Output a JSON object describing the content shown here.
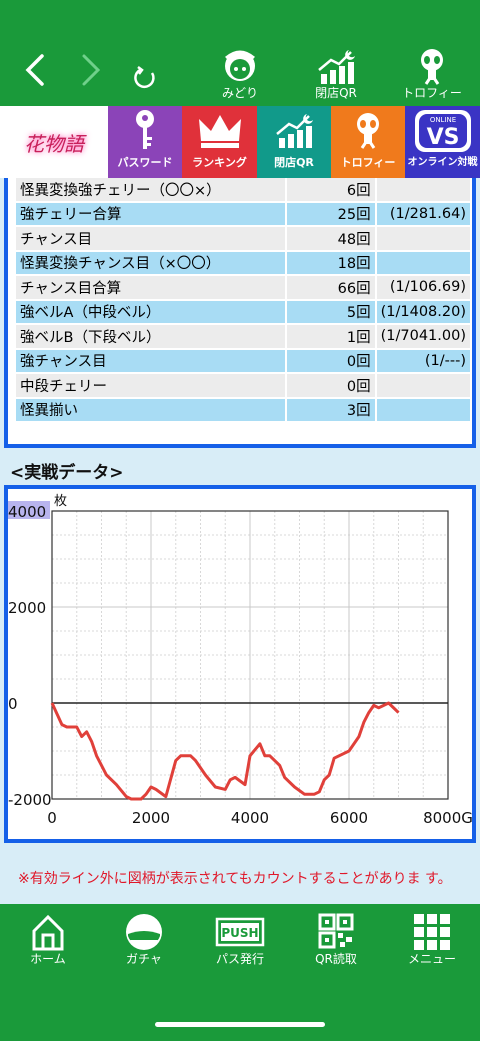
{
  "topbar": {
    "back_icon": "chevron-left-icon",
    "forward_icon": "chevron-right-icon",
    "reload_icon": "reload-icon",
    "items": [
      {
        "label": "みどり",
        "icon": "character-icon"
      },
      {
        "label": "閉店QR",
        "icon": "chart-moon-icon"
      },
      {
        "label": "トロフィー",
        "icon": "alien-icon"
      }
    ]
  },
  "menubar": {
    "logo_text": "花物語",
    "items": [
      {
        "label": "パスワード",
        "color": "#8b44b8",
        "icon": "key-icon"
      },
      {
        "label": "ランキング",
        "color": "#e0313a",
        "icon": "crown-icon"
      },
      {
        "label": "閉店QR",
        "color": "#119a8a",
        "icon": "chart-moon-icon"
      },
      {
        "label": "トロフィー",
        "color": "#f07a1c",
        "icon": "alien-icon"
      },
      {
        "label": "オンライン対戦",
        "color": "#3a34c4",
        "icon": "vs-icon",
        "badge": "VS",
        "sub_badge": "ONLINE"
      }
    ]
  },
  "table": {
    "rows": [
      {
        "name": "怪異変換強チェリー（〇〇×）",
        "count": "6回",
        "prob": ""
      },
      {
        "name": "強チェリー合算",
        "count": "25回",
        "prob": "(1/281.64)"
      },
      {
        "name": "チャンス目",
        "count": "48回",
        "prob": ""
      },
      {
        "name": "怪異変換チャンス目（×〇〇）",
        "count": "18回",
        "prob": ""
      },
      {
        "name": "チャンス目合算",
        "count": "66回",
        "prob": "(1/106.69)"
      },
      {
        "name": "強ベルA（中段ベル）",
        "count": "5回",
        "prob": "(1/1408.20)"
      },
      {
        "name": "強ベルB（下段ベル）",
        "count": "1回",
        "prob": "(1/7041.00)"
      },
      {
        "name": "強チャンス目",
        "count": "0回",
        "prob": "(1/---)"
      },
      {
        "name": "中段チェリー",
        "count": "0回",
        "prob": ""
      },
      {
        "name": "怪異揃い",
        "count": "3回",
        "prob": ""
      }
    ]
  },
  "section_title": "<実戦データ>",
  "chart_data": {
    "type": "line",
    "ylabel": "枚",
    "ylim": [
      -2000,
      4000
    ],
    "xlim": [
      0,
      8000
    ],
    "y_ticks": [
      "4000",
      "2000",
      "0",
      "-2000"
    ],
    "x_ticks": [
      "0",
      "2000",
      "4000",
      "6000",
      "8000G"
    ],
    "y_tick_values": [
      4000,
      2000,
      0,
      -2000
    ],
    "x_tick_values": [
      0,
      2000,
      4000,
      6000,
      8000
    ],
    "grid": true,
    "series": [
      {
        "color": "#e0403a",
        "x": [
          0,
          200,
          300,
          500,
          600,
          700,
          800,
          900,
          1100,
          1300,
          1500,
          1600,
          1700,
          1800,
          1900,
          2000,
          2100,
          2300,
          2500,
          2600,
          2800,
          2900,
          3100,
          3300,
          3500,
          3600,
          3700,
          3900,
          4000,
          4200,
          4300,
          4400,
          4600,
          4700,
          4900,
          5100,
          5300,
          5400,
          5500,
          5600,
          5700,
          6000,
          6200,
          6300,
          6400,
          6500,
          6600,
          6800,
          7000
        ],
        "y": [
          0,
          -450,
          -500,
          -500,
          -700,
          -600,
          -800,
          -1100,
          -1500,
          -1700,
          -1950,
          -2000,
          -2000,
          -2000,
          -1900,
          -1750,
          -1800,
          -1950,
          -1200,
          -1100,
          -1100,
          -1200,
          -1500,
          -1750,
          -1800,
          -1600,
          -1550,
          -1700,
          -1100,
          -850,
          -1100,
          -1100,
          -1300,
          -1550,
          -1750,
          -1900,
          -1900,
          -1850,
          -1600,
          -1500,
          -1150,
          -1000,
          -700,
          -400,
          -200,
          -50,
          -100,
          0,
          -200
        ]
      }
    ]
  },
  "note": "※有効ライン外に図柄が表示されてもカウントすることがありま す。",
  "bottombar": {
    "items": [
      {
        "label": "ホーム",
        "icon": "home-icon"
      },
      {
        "label": "ガチャ",
        "icon": "gacha-icon"
      },
      {
        "label": "パス発行",
        "icon": "push-icon",
        "badge": "PUSH"
      },
      {
        "label": "QR読取",
        "icon": "qr-icon"
      },
      {
        "label": "メニュー",
        "icon": "grid-menu-icon"
      }
    ]
  }
}
